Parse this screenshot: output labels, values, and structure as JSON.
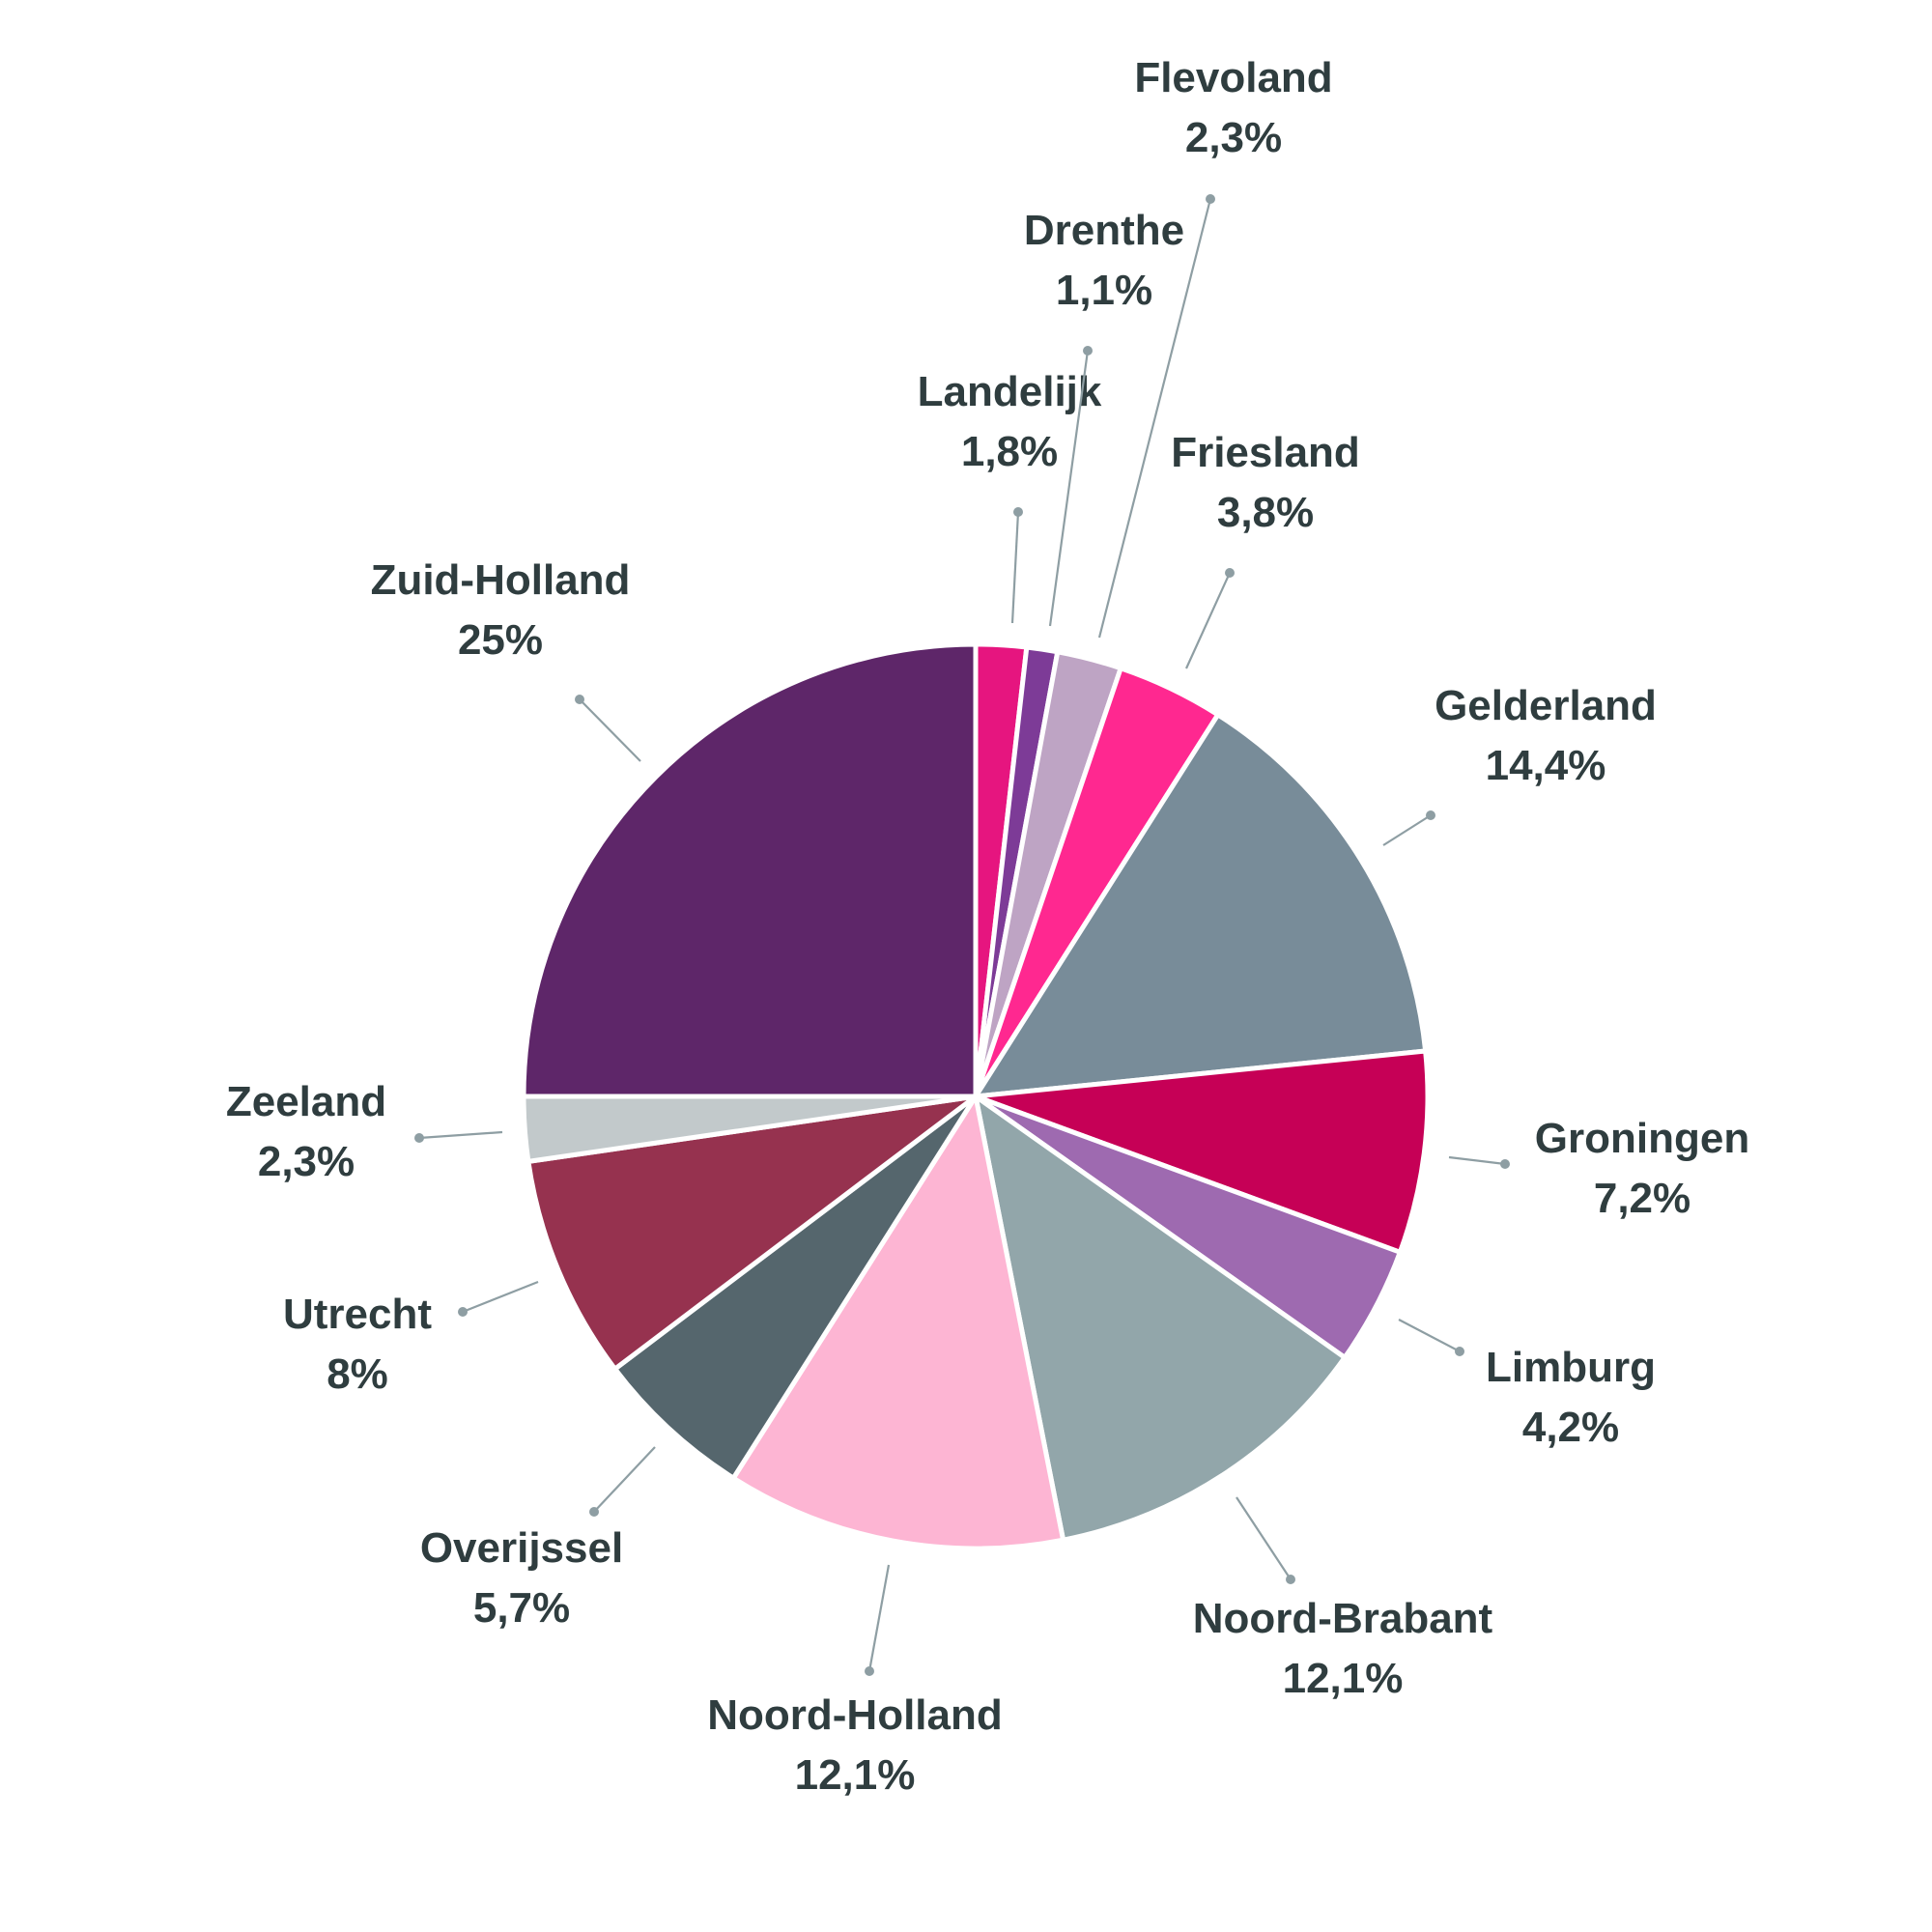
{
  "chart_data": {
    "type": "pie",
    "start_angle_deg": 0,
    "direction": "clockwise",
    "slices": [
      {
        "label": "Landelijk",
        "value_text": "1,8%",
        "value": 1.8,
        "color": "#e6157f"
      },
      {
        "label": "Drenthe",
        "value_text": "1,1%",
        "value": 1.1,
        "color": "#7d3b97"
      },
      {
        "label": "Flevoland",
        "value_text": "2,3%",
        "value": 2.3,
        "color": "#bea4c4"
      },
      {
        "label": "Friesland",
        "value_text": "3,8%",
        "value": 3.8,
        "color": "#ff2890"
      },
      {
        "label": "Gelderland",
        "value_text": "14,4%",
        "value": 14.4,
        "color": "#788c99"
      },
      {
        "label": "Groningen",
        "value_text": "7,2%",
        "value": 7.2,
        "color": "#c60056"
      },
      {
        "label": "Limburg",
        "value_text": "4,2%",
        "value": 4.2,
        "color": "#9e6ab0"
      },
      {
        "label": "Noord-Brabant",
        "value_text": "12,1%",
        "value": 12.1,
        "color": "#92a6aa"
      },
      {
        "label": "Noord-Holland",
        "value_text": "12,1%",
        "value": 12.1,
        "color": "#fdb5d3"
      },
      {
        "label": "Overijssel",
        "value_text": "5,7%",
        "value": 5.7,
        "color": "#55666d"
      },
      {
        "label": "Utrecht",
        "value_text": "8%",
        "value": 8.0,
        "color": "#96324f"
      },
      {
        "label": "Zeeland",
        "value_text": "2,3%",
        "value": 2.3,
        "color": "#c2c9cb"
      },
      {
        "label": "Zuid-Holland",
        "value_text": "25%",
        "value": 25.0,
        "color": "#5e2669"
      }
    ]
  }
}
